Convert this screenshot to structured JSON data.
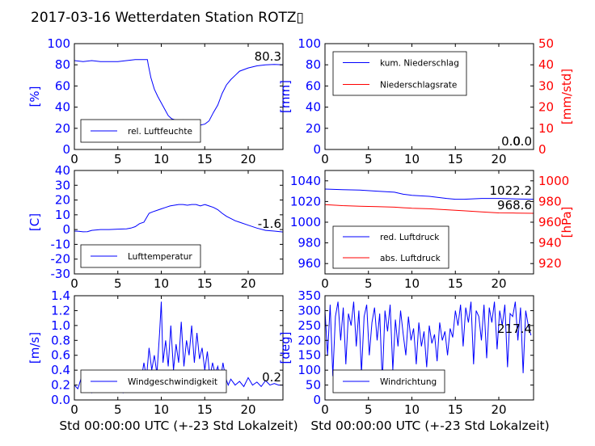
{
  "figure": {
    "title": "2017-03-16 Wetterdaten Station ROTZ▯",
    "x_axis_label": "Std 00:00:00 UTC (+-23 Std Lokalzeit)"
  },
  "colors": {
    "primary": "#0000ff",
    "secondary": "#ff0000",
    "frame": "#000000",
    "legend_border": "#000000"
  },
  "chart_data": [
    {
      "id": "humidity",
      "type": "line",
      "xlim": [
        0,
        24
      ],
      "xticks": [
        0,
        5,
        10,
        15,
        20
      ],
      "ylim": [
        0,
        100
      ],
      "yticks": [
        0,
        20,
        40,
        60,
        80,
        100
      ],
      "ylabel": "[%]",
      "legend": [
        "rel. Luftfeuchte"
      ],
      "legend_position": "lower-center",
      "annotations": [
        "80.3"
      ],
      "series": [
        {
          "name": "rel. Luftfeuchte",
          "color": "#0000ff",
          "x": [
            0,
            1,
            2,
            3,
            4,
            5,
            6,
            7,
            7.5,
            8,
            8.4,
            8.5,
            8.8,
            9.2,
            9.6,
            10,
            10.4,
            10.8,
            11.2,
            11.6,
            12,
            12.5,
            13,
            13.5,
            14,
            14.5,
            15,
            15.5,
            16,
            16.5,
            17,
            17.5,
            18,
            18.5,
            19,
            20,
            21,
            22,
            23,
            24
          ],
          "y": [
            84,
            83,
            84,
            83,
            83,
            83,
            84,
            85,
            85,
            85,
            85,
            80,
            68,
            57,
            50,
            44,
            38,
            32,
            29,
            28,
            27,
            28,
            27,
            27,
            25,
            23,
            24,
            27,
            35,
            42,
            53,
            61,
            66,
            70,
            74,
            77,
            79,
            80,
            80.3,
            80
          ]
        }
      ]
    },
    {
      "id": "precipitation",
      "type": "line",
      "xlim": [
        0,
        24
      ],
      "xticks": [
        0,
        5,
        10,
        15,
        20
      ],
      "ylim": [
        0,
        100
      ],
      "yticks": [
        0,
        20,
        40,
        60,
        80,
        100
      ],
      "ylabel": "[mm]",
      "y2lim": [
        0,
        50
      ],
      "y2ticks": [
        0,
        10,
        20,
        30,
        40,
        50
      ],
      "y2label": "[mm/std]",
      "legend": [
        "kum. Niederschlag",
        "Niederschlagsrate"
      ],
      "legend_position": "upper-left",
      "annotations": [
        "0.0",
        "0.0"
      ],
      "series": [
        {
          "name": "kum. Niederschlag",
          "color": "#0000ff",
          "axis": "left",
          "x": [
            0,
            24
          ],
          "y": [
            0,
            0
          ]
        },
        {
          "name": "Niederschlagsrate",
          "color": "#ff0000",
          "axis": "right",
          "x": [
            0,
            24
          ],
          "y": [
            0,
            0
          ]
        }
      ]
    },
    {
      "id": "temperature",
      "type": "line",
      "xlim": [
        0,
        24
      ],
      "xticks": [
        0,
        5,
        10,
        15,
        20
      ],
      "ylim": [
        -30,
        40
      ],
      "yticks": [
        -30,
        -20,
        -10,
        0,
        10,
        20,
        30,
        40
      ],
      "ylabel": "[C]",
      "legend": [
        "Lufttemperatur"
      ],
      "legend_position": "lower-center",
      "annotations": [
        "-1.6"
      ],
      "series": [
        {
          "name": "Lufttemperatur",
          "color": "#0000ff",
          "x": [
            0,
            0.5,
            1,
            1.5,
            2,
            3,
            4,
            5,
            6,
            6.5,
            7,
            7.5,
            8,
            8.3,
            8.6,
            9,
            9.5,
            10,
            10.5,
            11,
            11.5,
            12,
            12.5,
            13,
            13.5,
            14,
            14.5,
            15,
            15.5,
            16,
            16.5,
            17,
            17.5,
            18,
            18.5,
            19,
            20,
            21,
            22,
            23,
            24
          ],
          "y": [
            -1,
            -1.2,
            -1.5,
            -1.4,
            -0.5,
            0,
            0,
            0.3,
            0.5,
            1,
            2,
            4,
            5,
            8,
            11,
            12,
            13,
            14,
            15,
            16,
            16.5,
            17,
            17,
            16.5,
            17,
            17,
            16,
            17,
            16,
            15,
            13.5,
            11,
            9,
            7.5,
            6,
            5,
            3,
            1,
            -0.5,
            -1,
            -1.6
          ]
        }
      ]
    },
    {
      "id": "pressure",
      "type": "line",
      "xlim": [
        0,
        24
      ],
      "xticks": [
        0,
        5,
        10,
        15,
        20
      ],
      "ylim": [
        950,
        1050
      ],
      "yticks": [
        960,
        980,
        1000,
        1020,
        1040
      ],
      "ylabel": "",
      "y2lim": [
        910,
        1010
      ],
      "y2ticks": [
        920,
        940,
        960,
        980,
        1000
      ],
      "y2label": "[hPa]",
      "legend": [
        "red. Luftdruck",
        "abs. Luftdruck"
      ],
      "legend_position": "lower-left",
      "annotations": [
        "1022.2",
        "968.6"
      ],
      "series": [
        {
          "name": "red. Luftdruck",
          "color": "#0000ff",
          "axis": "left",
          "x": [
            0,
            2,
            4,
            6,
            8,
            9,
            10,
            12,
            14,
            15,
            16,
            18,
            20,
            22,
            24
          ],
          "y": [
            1032,
            1031.5,
            1031,
            1030,
            1029,
            1027,
            1026,
            1025,
            1023,
            1022.2,
            1022.2,
            1023,
            1023,
            1022.5,
            1022.2
          ]
        },
        {
          "name": "abs. Luftdruck",
          "color": "#ff0000",
          "axis": "right",
          "x": [
            0,
            2,
            4,
            6,
            8,
            9,
            10,
            12,
            14,
            16,
            18,
            20,
            22,
            24
          ],
          "y": [
            977,
            976,
            975.5,
            975,
            974.5,
            974,
            973.5,
            973,
            972,
            971,
            970,
            969,
            968.8,
            968.6
          ]
        }
      ]
    },
    {
      "id": "windspeed",
      "type": "line",
      "xlim": [
        0,
        24
      ],
      "xticks": [
        0,
        5,
        10,
        15,
        20
      ],
      "ylim": [
        0,
        1.4
      ],
      "yticks": [
        0.0,
        0.2,
        0.4,
        0.6,
        0.8,
        1.0,
        1.2,
        1.4
      ],
      "ylabel": "[m/s]",
      "legend": [
        "Windgeschwindigkeit"
      ],
      "legend_position": "lower-center",
      "annotations": [
        "0.2"
      ],
      "series": [
        {
          "name": "Windgeschwindigkeit",
          "color": "#0000ff",
          "x": [
            0,
            0.4,
            0.8,
            1.2,
            1.6,
            2,
            2.4,
            2.8,
            3.2,
            3.6,
            4,
            4.4,
            4.8,
            5.2,
            5.6,
            6,
            6.4,
            6.8,
            7.2,
            7.6,
            8,
            8.3,
            8.6,
            8.9,
            9.2,
            9.5,
            9.8,
            10,
            10.2,
            10.5,
            10.8,
            11.1,
            11.4,
            11.7,
            12,
            12.3,
            12.6,
            12.9,
            13.2,
            13.5,
            13.8,
            14.1,
            14.4,
            14.7,
            15,
            15.3,
            15.6,
            15.9,
            16.2,
            16.5,
            16.8,
            17.1,
            17.4,
            17.7,
            18,
            18.5,
            19,
            19.5,
            20,
            20.5,
            21,
            21.5,
            22,
            22.5,
            23,
            23.5,
            24
          ],
          "y": [
            0.2,
            0.15,
            0.3,
            0.12,
            0.2,
            0.1,
            0.25,
            0.15,
            0.2,
            0.3,
            0.12,
            0.22,
            0.15,
            0.28,
            0.1,
            0.2,
            0.35,
            0.15,
            0.4,
            0.2,
            0.5,
            0.3,
            0.7,
            0.4,
            0.6,
            0.35,
            0.9,
            1.32,
            0.5,
            0.8,
            0.45,
            1.0,
            0.4,
            0.75,
            0.5,
            1.05,
            0.45,
            0.8,
            0.6,
            1.0,
            0.5,
            0.9,
            0.55,
            0.7,
            0.4,
            0.65,
            0.3,
            0.5,
            0.35,
            0.45,
            0.25,
            0.5,
            0.3,
            0.2,
            0.28,
            0.2,
            0.25,
            0.18,
            0.3,
            0.2,
            0.24,
            0.18,
            0.26,
            0.2,
            0.22,
            0.2,
            0.2
          ]
        }
      ]
    },
    {
      "id": "winddirection",
      "type": "line",
      "xlim": [
        0,
        24
      ],
      "xticks": [
        0,
        5,
        10,
        15,
        20
      ],
      "ylim": [
        0,
        350
      ],
      "yticks": [
        0,
        50,
        100,
        150,
        200,
        250,
        300,
        350
      ],
      "ylabel": "[deg]",
      "legend": [
        "Windrichtung"
      ],
      "legend_position": "lower-left",
      "annotations": [
        "217.4"
      ],
      "series": [
        {
          "name": "Windrichtung",
          "color": "#0000ff",
          "x": [
            0,
            0.3,
            0.6,
            0.9,
            1.2,
            1.5,
            1.8,
            2.1,
            2.4,
            2.7,
            3,
            3.3,
            3.6,
            3.9,
            4.2,
            4.5,
            4.8,
            5.1,
            5.4,
            5.7,
            6,
            6.3,
            6.6,
            6.9,
            7.2,
            7.5,
            7.8,
            8.1,
            8.4,
            8.7,
            9,
            9.3,
            9.6,
            9.9,
            10.2,
            10.5,
            10.8,
            11.1,
            11.4,
            11.7,
            12,
            12.3,
            12.6,
            12.9,
            13.2,
            13.5,
            13.8,
            14.1,
            14.4,
            14.7,
            15,
            15.3,
            15.6,
            15.9,
            16.2,
            16.5,
            16.8,
            17.1,
            17.4,
            17.7,
            18,
            18.3,
            18.6,
            18.9,
            19.2,
            19.5,
            19.8,
            20.1,
            20.4,
            20.7,
            21,
            21.3,
            21.6,
            21.9,
            22.2,
            22.5,
            22.8,
            23.1,
            23.4,
            23.7
          ],
          "y": [
            300,
            150,
            320,
            80,
            280,
            330,
            200,
            310,
            120,
            290,
            250,
            330,
            180,
            300,
            90,
            280,
            320,
            150,
            260,
            310,
            200,
            290,
            60,
            300,
            230,
            320,
            100,
            270,
            180,
            300,
            220,
            150,
            280,
            200,
            240,
            120,
            260,
            180,
            230,
            110,
            250,
            190,
            220,
            130,
            260,
            200,
            230,
            150,
            240,
            210,
            300,
            250,
            320,
            180,
            310,
            260,
            330,
            120,
            300,
            280,
            200,
            320,
            140,
            310,
            260,
            330,
            170,
            300,
            250,
            320,
            110,
            290,
            280,
            330,
            200,
            310,
            90,
            300,
            250,
            217
          ]
        }
      ]
    }
  ]
}
